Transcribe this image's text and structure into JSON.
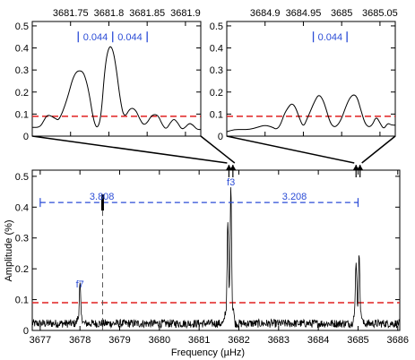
{
  "colors": {
    "signal": "#000000",
    "threshold": "#e02020",
    "annotation": "#2b4cd6",
    "dashed_marker": "#555555"
  },
  "chart_data": [
    {
      "id": "main",
      "type": "line",
      "xlabel": "Frequency (µHz)",
      "ylabel": "Amplitude (%)",
      "xlim": [
        3676.8,
        3686.05
      ],
      "ylim": [
        0,
        0.52
      ],
      "xticks": [
        3677,
        3678,
        3679,
        3680,
        3681,
        3682,
        3683,
        3684,
        3685,
        3686
      ],
      "yticks": [
        0,
        0.1,
        0.2,
        0.3,
        0.4,
        0.5
      ],
      "threshold": 0.09,
      "noise_level": 0.03,
      "peaks": [
        {
          "x": 3678.0,
          "y": 0.125
        },
        {
          "x": 3681.72,
          "y": 0.3
        },
        {
          "x": 3681.8,
          "y": 0.42
        },
        {
          "x": 3684.95,
          "y": 0.19
        },
        {
          "x": 3685.03,
          "y": 0.21
        }
      ],
      "labels": [
        {
          "text": "f7",
          "x": 3678.0,
          "y": 0.14
        },
        {
          "text": "f3",
          "x": 3681.8,
          "y": 0.47
        }
      ],
      "spacing_bar": {
        "y": 0.415,
        "x_left": 3677.0,
        "x_mid": 3678.57,
        "x_right": 3685.0,
        "left_label": "3.808",
        "right_label": "3.208"
      },
      "arrows": [
        3681.75,
        3681.85,
        3684.95,
        3685.05
      ]
    },
    {
      "id": "zoom-left",
      "type": "line",
      "xlim": [
        3681.7,
        3681.92
      ],
      "ylim": [
        0,
        0.52
      ],
      "xticks": [
        3681.75,
        3681.8,
        3681.85,
        3681.9
      ],
      "yticks": [
        0,
        0.1,
        0.2,
        0.3,
        0.4,
        0.5
      ],
      "threshold": 0.09,
      "x": [
        3681.7,
        3681.71,
        3681.715,
        3681.72,
        3681.73,
        3681.735,
        3681.745,
        3681.755,
        3681.765,
        3681.77,
        3681.775,
        3681.78,
        3681.785,
        3681.79,
        3681.795,
        3681.8,
        3681.805,
        3681.81,
        3681.815,
        3681.82,
        3681.828,
        3681.835,
        3681.84,
        3681.845,
        3681.85,
        3681.855,
        3681.86,
        3681.865,
        3681.87,
        3681.875,
        3681.88,
        3681.885,
        3681.89,
        3681.895,
        3681.9,
        3681.905,
        3681.91,
        3681.915,
        3681.92
      ],
      "y": [
        0.04,
        0.04,
        0.07,
        0.1,
        0.08,
        0.07,
        0.16,
        0.29,
        0.3,
        0.26,
        0.18,
        0.07,
        0.03,
        0.09,
        0.32,
        0.41,
        0.4,
        0.3,
        0.16,
        0.08,
        0.13,
        0.12,
        0.08,
        0.05,
        0.06,
        0.09,
        0.1,
        0.09,
        0.05,
        0.03,
        0.06,
        0.08,
        0.06,
        0.03,
        0.04,
        0.06,
        0.05,
        0.03,
        0.03
      ],
      "spacing_bar": {
        "y": 0.45,
        "x_left": 3681.76,
        "x_mid": 3681.805,
        "x_right": 3681.85,
        "left_label": "0.044",
        "right_label": "0.044"
      }
    },
    {
      "id": "zoom-right",
      "type": "line",
      "xlim": [
        3684.85,
        3685.07
      ],
      "ylim": [
        0,
        0.52
      ],
      "xticks": [
        3684.9,
        3684.95,
        3685,
        3685.05
      ],
      "yticks": [
        0,
        0.1,
        0.2,
        0.3,
        0.4,
        0.5
      ],
      "threshold": 0.09,
      "x": [
        3684.85,
        3684.86,
        3684.87,
        3684.88,
        3684.89,
        3684.9,
        3684.91,
        3684.915,
        3684.92,
        3684.925,
        3684.93,
        3684.935,
        3684.94,
        3684.945,
        3684.95,
        3684.955,
        3684.96,
        3684.965,
        3684.97,
        3684.975,
        3684.98,
        3684.985,
        3684.99,
        3684.995,
        3685.0,
        3685.005,
        3685.01,
        3685.015,
        3685.02,
        3685.025,
        3685.03,
        3685.035,
        3685.04,
        3685.045,
        3685.05,
        3685.055,
        3685.06,
        3685.065,
        3685.07
      ],
      "y": [
        0.02,
        0.03,
        0.03,
        0.03,
        0.04,
        0.05,
        0.04,
        0.03,
        0.05,
        0.1,
        0.13,
        0.15,
        0.13,
        0.08,
        0.04,
        0.08,
        0.12,
        0.16,
        0.19,
        0.17,
        0.12,
        0.06,
        0.04,
        0.05,
        0.08,
        0.13,
        0.17,
        0.19,
        0.18,
        0.12,
        0.06,
        0.04,
        0.05,
        0.09,
        0.06,
        0.03,
        0.06,
        0.05,
        0.05
      ],
      "spacing_bar": {
        "y": 0.45,
        "x_left": 3684.963,
        "x_right": 3685.007,
        "left_label": "0.044"
      }
    }
  ],
  "frame": {
    "xlabel": "Frequency (µHz)",
    "ylabel": "Amplitude (%)"
  }
}
